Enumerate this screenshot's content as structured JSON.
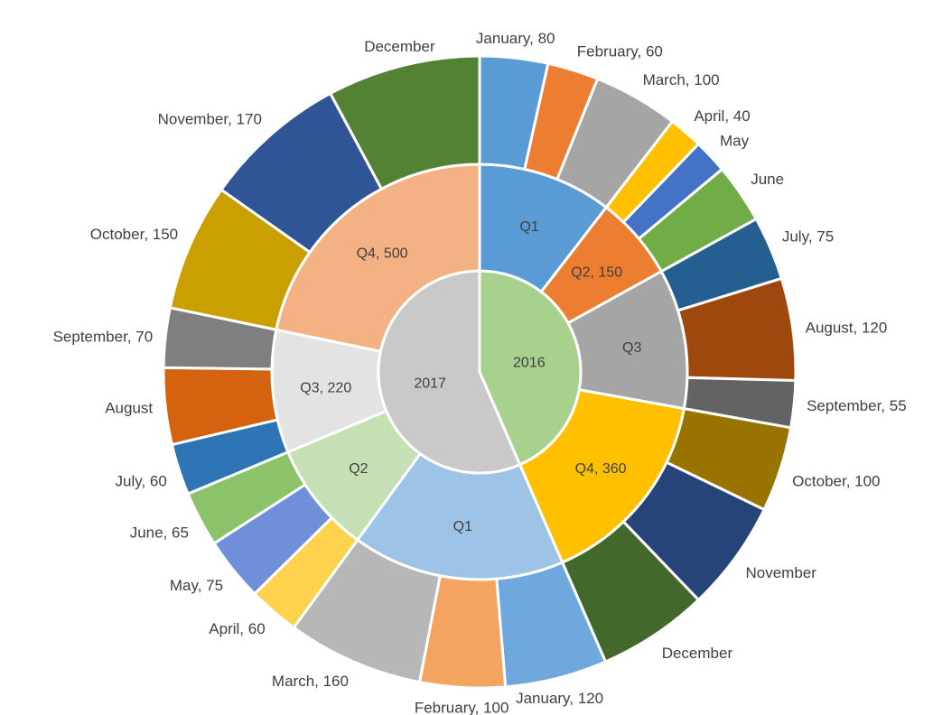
{
  "chart_data": {
    "type": "sunburst",
    "title": "",
    "colors": {
      "year_2016": "#A9D18E",
      "year_2017": "#C9C9C9",
      "q1_2016": "#5B9BD5",
      "q2_2016": "#ED7D31",
      "q3_2016": "#A5A5A5",
      "q4_2016": "#FFC000",
      "q1_2017": "#9DC3E6",
      "q2_2017": "#C5E0B4",
      "q3_2017": "#E3E3E3",
      "q4_2017": "#F4B183"
    },
    "years": [
      {
        "label": "2016",
        "quarters": [
          {
            "label": "Q1",
            "months": [
              {
                "label": "January, 80",
                "value": 80,
                "color": "#5B9BD5"
              },
              {
                "label": "February, 60",
                "value": 60,
                "color": "#ED7D31"
              },
              {
                "label": "March, 100",
                "value": 100,
                "color": "#A5A5A5"
              }
            ]
          },
          {
            "label": "Q2, 150",
            "months": [
              {
                "label": "April, 40",
                "value": 40,
                "color": "#FFC000"
              },
              {
                "label": "May",
                "value": 40,
                "color": "#4472C4"
              },
              {
                "label": "June",
                "value": 70,
                "color": "#70AD47"
              }
            ]
          },
          {
            "label": "Q3",
            "months": [
              {
                "label": "July, 75",
                "value": 75,
                "color": "#255E91"
              },
              {
                "label": "August, 120",
                "value": 120,
                "color": "#9E480E"
              },
              {
                "label": "September, 55",
                "value": 55,
                "color": "#636363"
              }
            ]
          },
          {
            "label": "Q4, 360",
            "months": [
              {
                "label": "October, 100",
                "value": 100,
                "color": "#997300"
              },
              {
                "label": "November",
                "value": 130,
                "color": "#264478"
              },
              {
                "label": "December",
                "value": 130,
                "color": "#43682B"
              }
            ]
          }
        ]
      },
      {
        "label": "2017",
        "quarters": [
          {
            "label": "Q1",
            "months": [
              {
                "label": "January, 120",
                "value": 120,
                "color": "#6FA8DC"
              },
              {
                "label": "February, 100",
                "value": 100,
                "color": "#F4A460"
              },
              {
                "label": "March, 160",
                "value": 160,
                "color": "#B7B7B7"
              }
            ]
          },
          {
            "label": "Q2",
            "months": [
              {
                "label": "April, 60",
                "value": 60,
                "color": "#FFD24D"
              },
              {
                "label": "May, 75",
                "value": 75,
                "color": "#6F8FD8"
              },
              {
                "label": "June, 65",
                "value": 65,
                "color": "#8CC36A"
              }
            ]
          },
          {
            "label": "Q3, 220",
            "months": [
              {
                "label": "July, 60",
                "value": 60,
                "color": "#2E75B6"
              },
              {
                "label": "August",
                "value": 90,
                "color": "#D4620F"
              },
              {
                "label": "September, 70",
                "value": 70,
                "color": "#7F7F7F"
              }
            ]
          },
          {
            "label": "Q4, 500",
            "months": [
              {
                "label": "October, 150",
                "value": 150,
                "color": "#C9A000"
              },
              {
                "label": "November, 170",
                "value": 170,
                "color": "#2F5597"
              },
              {
                "label": "December",
                "value": 180,
                "color": "#548235"
              }
            ]
          }
        ]
      }
    ]
  }
}
